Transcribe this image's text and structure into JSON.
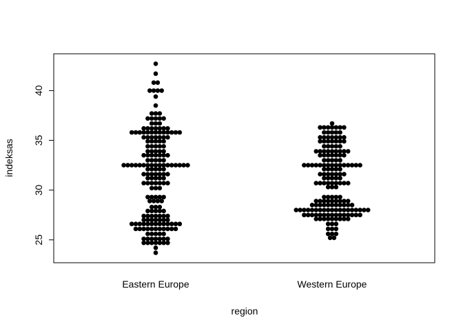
{
  "chart_data": {
    "type": "scatter",
    "subtype": "beeswarm",
    "title": "",
    "xlabel": "region",
    "ylabel": "indeksas",
    "categories": [
      "Eastern Europe",
      "Western Europe"
    ],
    "ylim": [
      22.7,
      43.7
    ],
    "yticks": [
      25,
      30,
      35,
      40
    ],
    "grid": false,
    "legend": "none",
    "point_color": "#000000",
    "series": [
      {
        "category": "Eastern Europe",
        "values": [
          42.7,
          41.7,
          40.8,
          40.8,
          40.0,
          40.0,
          40.0,
          40.0,
          39.4,
          38.5,
          37.7,
          37.7,
          37.7,
          37.2,
          37.2,
          37.2,
          37.2,
          37.2,
          36.7,
          36.7,
          36.7,
          36.2,
          36.2,
          36.2,
          36.2,
          36.2,
          36.2,
          36.2,
          35.8,
          35.8,
          35.8,
          35.8,
          35.8,
          35.8,
          35.8,
          35.8,
          35.8,
          35.8,
          35.8,
          35.8,
          35.8,
          35.3,
          35.3,
          35.3,
          35.3,
          35.3,
          35.3,
          35.3,
          34.9,
          34.9,
          34.9,
          34.9,
          34.9,
          34.4,
          34.4,
          34.4,
          34.4,
          34.4,
          33.9,
          33.9,
          33.9,
          33.9,
          33.9,
          33.5,
          33.5,
          33.5,
          33.5,
          33.5,
          33.5,
          33.5,
          33.0,
          33.0,
          33.0,
          33.0,
          33.0,
          32.5,
          32.5,
          32.5,
          32.5,
          32.5,
          32.5,
          32.5,
          32.5,
          32.5,
          32.5,
          32.5,
          32.5,
          32.5,
          32.5,
          32.5,
          32.5,
          32.5,
          32.1,
          32.1,
          32.1,
          32.1,
          32.1,
          31.6,
          31.6,
          31.6,
          31.6,
          31.6,
          31.6,
          31.6,
          31.2,
          31.2,
          31.2,
          31.2,
          31.2,
          30.7,
          30.7,
          30.7,
          30.7,
          30.7,
          30.7,
          30.7,
          30.2,
          30.2,
          30.2,
          29.3,
          29.3,
          29.3,
          29.3,
          29.3,
          28.9,
          28.9,
          28.9,
          28.9,
          28.3,
          28.3,
          28.3,
          27.9,
          27.9,
          27.9,
          27.9,
          27.9,
          27.4,
          27.4,
          27.4,
          27.4,
          27.4,
          27.4,
          27.4,
          27.0,
          27.0,
          27.0,
          27.0,
          27.0,
          27.0,
          27.0,
          26.6,
          26.6,
          26.6,
          26.6,
          26.6,
          26.6,
          26.6,
          26.6,
          26.6,
          26.6,
          26.6,
          26.6,
          26.6,
          26.1,
          26.1,
          26.1,
          26.1,
          26.1,
          26.1,
          26.1,
          26.1,
          26.1,
          26.1,
          26.1,
          25.6,
          25.6,
          25.6,
          25.6,
          25.6,
          25.1,
          25.1,
          25.1,
          25.1,
          25.1,
          25.1,
          25.1,
          24.7,
          24.7,
          24.7,
          24.7,
          24.7,
          24.7,
          24.7,
          24.2,
          23.7
        ]
      },
      {
        "category": "Western Europe",
        "values": [
          36.7,
          36.3,
          36.3,
          36.3,
          36.3,
          36.3,
          36.3,
          36.3,
          35.8,
          35.8,
          35.8,
          35.8,
          35.8,
          35.3,
          35.3,
          35.3,
          35.3,
          35.3,
          35.3,
          35.3,
          34.9,
          34.9,
          34.9,
          34.9,
          34.9,
          34.9,
          34.9,
          34.4,
          34.4,
          34.4,
          34.4,
          34.4,
          33.9,
          33.9,
          33.9,
          33.9,
          33.9,
          33.9,
          33.9,
          33.9,
          33.9,
          33.5,
          33.5,
          33.5,
          33.5,
          33.5,
          33.5,
          33.5,
          33.0,
          33.0,
          33.0,
          33.0,
          33.0,
          32.5,
          32.5,
          32.5,
          32.5,
          32.5,
          32.5,
          32.5,
          32.5,
          32.5,
          32.5,
          32.5,
          32.5,
          32.5,
          32.5,
          32.5,
          32.1,
          32.1,
          32.1,
          32.1,
          32.1,
          31.6,
          31.6,
          31.6,
          31.6,
          31.6,
          31.6,
          31.6,
          31.2,
          31.2,
          31.2,
          31.2,
          31.2,
          30.7,
          30.7,
          30.7,
          30.7,
          30.7,
          30.7,
          30.7,
          30.7,
          30.7,
          30.3,
          30.3,
          30.3,
          29.3,
          29.3,
          29.3,
          29.3,
          29.3,
          28.9,
          28.9,
          28.9,
          28.9,
          28.9,
          28.9,
          28.9,
          28.9,
          28.9,
          28.5,
          28.5,
          28.5,
          28.5,
          28.5,
          28.5,
          28.5,
          28.5,
          28.5,
          28.5,
          28.5,
          28.0,
          28.0,
          28.0,
          28.0,
          28.0,
          28.0,
          28.0,
          28.0,
          28.0,
          28.0,
          28.0,
          28.0,
          28.0,
          28.0,
          28.0,
          28.0,
          28.0,
          28.0,
          28.0,
          27.5,
          27.5,
          27.5,
          27.5,
          27.5,
          27.5,
          27.5,
          27.5,
          27.5,
          27.5,
          27.5,
          27.5,
          27.5,
          27.5,
          27.5,
          27.1,
          27.1,
          27.1,
          27.1,
          27.1,
          27.1,
          27.1,
          27.1,
          27.1,
          26.6,
          26.6,
          26.6,
          26.1,
          26.1,
          26.1,
          25.6,
          25.6,
          25.6,
          25.2,
          25.2
        ]
      }
    ]
  }
}
